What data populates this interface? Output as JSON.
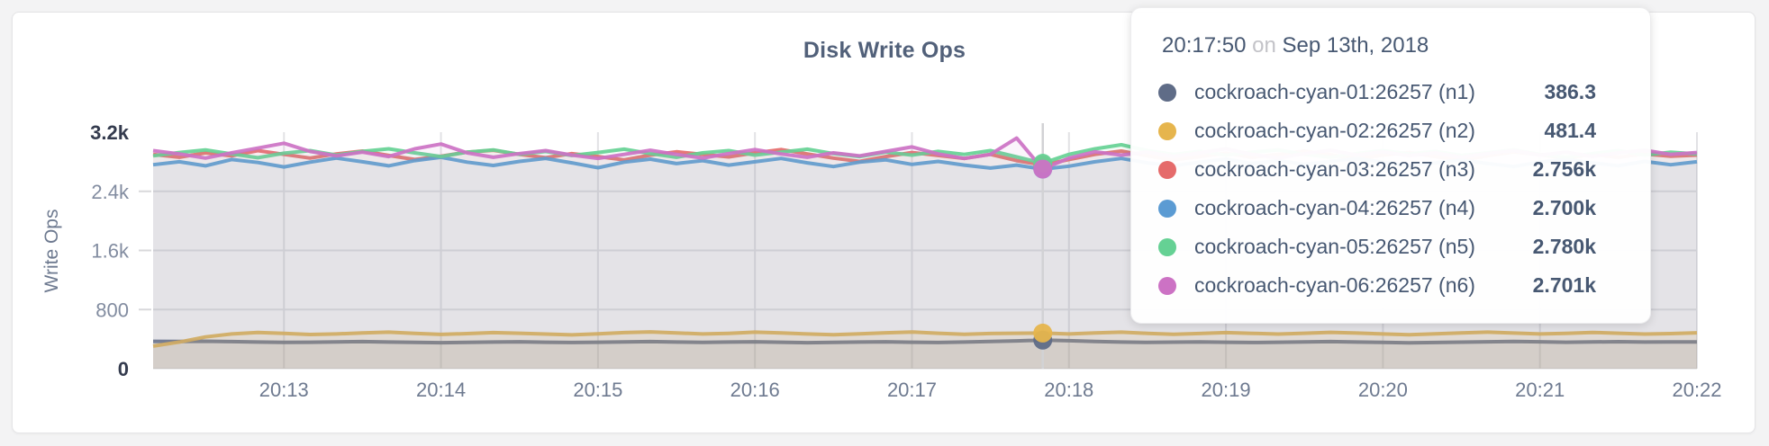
{
  "theme": {
    "page_background": "#f3f3f4",
    "card_background": "#ffffff",
    "grid_color": "#e2e2e5",
    "hover_line_color": "#d2d2d5",
    "axis_tick_color": "#828ca0",
    "axis_tick_strong_color": "#343b4e",
    "axis_label_color": "#6e7a90",
    "title_color": "#52617a",
    "tooltip_text_color": "#475872"
  },
  "chart": {
    "title": "Disk Write Ops",
    "ylabel": "Write Ops"
  },
  "tooltip": {
    "time": "20:17:50",
    "separator": "on",
    "date": "Sep 13th, 2018",
    "series": [
      {
        "label": "cockroach-cyan-01:26257 (n1)",
        "value": "386.3",
        "color": "#5f6c87"
      },
      {
        "label": "cockroach-cyan-02:26257 (n2)",
        "value": "481.4",
        "color": "#e6b54d"
      },
      {
        "label": "cockroach-cyan-03:26257 (n3)",
        "value": "2.756k",
        "color": "#e56b6b"
      },
      {
        "label": "cockroach-cyan-04:26257 (n4)",
        "value": "2.700k",
        "color": "#5b9bd3"
      },
      {
        "label": "cockroach-cyan-05:26257 (n5)",
        "value": "2.780k",
        "color": "#65d194"
      },
      {
        "label": "cockroach-cyan-06:26257 (n6)",
        "value": "2.701k",
        "color": "#cc72c4"
      }
    ]
  },
  "chart_data": {
    "type": "line",
    "title": "Disk Write Ops",
    "xlabel": "",
    "ylabel": "Write Ops",
    "ylim": [
      0,
      3200
    ],
    "grid": true,
    "x_start_time": "20:12:10",
    "x_step_seconds": 10,
    "hover_index": 34,
    "hover_time": "20:17:50",
    "hover_date": "Sep 13th, 2018",
    "y_ticks": [
      {
        "value": 0,
        "label": "0",
        "strong": true,
        "gridline": false
      },
      {
        "value": 800,
        "label": "800",
        "strong": false,
        "gridline": true
      },
      {
        "value": 1600,
        "label": "1.6k",
        "strong": false,
        "gridline": true
      },
      {
        "value": 2400,
        "label": "2.4k",
        "strong": false,
        "gridline": true
      },
      {
        "value": 3200,
        "label": "3.2k",
        "strong": true,
        "gridline": false
      }
    ],
    "x_ticks": [
      {
        "label": "20:13",
        "index": 5
      },
      {
        "label": "20:14",
        "index": 11
      },
      {
        "label": "20:15",
        "index": 17
      },
      {
        "label": "20:16",
        "index": 23
      },
      {
        "label": "20:17",
        "index": 29
      },
      {
        "label": "20:18",
        "index": 35
      },
      {
        "label": "20:19",
        "index": 41
      },
      {
        "label": "20:20",
        "index": 47
      },
      {
        "label": "20:21",
        "index": 53
      },
      {
        "label": "20:22",
        "index": 59
      }
    ],
    "series": [
      {
        "name": "cockroach-cyan-01:26257 (n1)",
        "color": "#5f6c87",
        "fill_alpha": 0.12,
        "hover_value": 386.3,
        "values": [
          370,
          368,
          371,
          366,
          360,
          356,
          358,
          362,
          366,
          360,
          355,
          352,
          356,
          360,
          364,
          358,
          354,
          358,
          362,
          366,
          360,
          356,
          360,
          364,
          358,
          352,
          356,
          360,
          364,
          358,
          354,
          360,
          368,
          376,
          386.3,
          378,
          368,
          360,
          355,
          359,
          363,
          358,
          354,
          358,
          362,
          366,
          360,
          355,
          350,
          354,
          359,
          364,
          369,
          364,
          358,
          361,
          365,
          360,
          363,
          361
        ]
      },
      {
        "name": "cockroach-cyan-02:26257 (n2)",
        "color": "#e6b54d",
        "fill_alpha": 0.15,
        "hover_value": 481.4,
        "values": [
          305,
          360,
          430,
          470,
          490,
          478,
          462,
          470,
          484,
          494,
          478,
          464,
          474,
          488,
          480,
          468,
          458,
          472,
          488,
          498,
          484,
          470,
          478,
          494,
          484,
          470,
          460,
          472,
          486,
          496,
          480,
          466,
          476,
          480,
          481.4,
          470,
          484,
          494,
          478,
          466,
          476,
          488,
          478,
          468,
          480,
          492,
          482,
          470,
          460,
          472,
          484,
          494,
          482,
          470,
          478,
          490,
          480,
          468,
          474,
          486
        ]
      },
      {
        "name": "cockroach-cyan-03:26257 (n3)",
        "color": "#e56b6b",
        "fill_alpha": 0.07,
        "hover_value": 2756,
        "values": [
          2900,
          2860,
          2920,
          2880,
          2950,
          2900,
          2850,
          2905,
          2945,
          2885,
          2830,
          2875,
          2930,
          2955,
          2900,
          2855,
          2910,
          2870,
          2825,
          2890,
          2935,
          2900,
          2865,
          2920,
          2965,
          2905,
          2850,
          2805,
          2870,
          2925,
          2885,
          2845,
          2900,
          2815,
          2756,
          2830,
          2900,
          2945,
          2880,
          2825,
          2870,
          2915,
          2860,
          2900,
          2945,
          2895,
          2840,
          2890,
          2925,
          2870,
          2820,
          2880,
          2935,
          2895,
          2850,
          2900,
          2860,
          2905,
          2875,
          2890
        ]
      },
      {
        "name": "cockroach-cyan-04:26257 (n4)",
        "color": "#5b9bd3",
        "fill_alpha": 0.07,
        "hover_value": 2700,
        "values": [
          2760,
          2800,
          2745,
          2830,
          2790,
          2730,
          2795,
          2850,
          2800,
          2745,
          2815,
          2860,
          2795,
          2750,
          2805,
          2845,
          2785,
          2720,
          2795,
          2835,
          2775,
          2815,
          2755,
          2800,
          2845,
          2785,
          2735,
          2795,
          2825,
          2765,
          2805,
          2755,
          2715,
          2755,
          2700,
          2740,
          2800,
          2845,
          2785,
          2745,
          2795,
          2835,
          2775,
          2815,
          2765,
          2805,
          2845,
          2795,
          2745,
          2785,
          2825,
          2775,
          2735,
          2795,
          2835,
          2785,
          2745,
          2805,
          2760,
          2800
        ]
      },
      {
        "name": "cockroach-cyan-05:26257 (n5)",
        "color": "#65d194",
        "fill_alpha": 0.07,
        "hover_value": 2780,
        "values": [
          2880,
          2925,
          2960,
          2905,
          2855,
          2915,
          2950,
          2890,
          2940,
          2975,
          2920,
          2870,
          2930,
          2960,
          2900,
          2940,
          2885,
          2925,
          2970,
          2910,
          2860,
          2920,
          2950,
          2890,
          2930,
          2970,
          2910,
          2870,
          2930,
          2890,
          2940,
          2900,
          2950,
          2865,
          2780,
          2900,
          2975,
          3030,
          2950,
          2900,
          2940,
          2890,
          2930,
          2960,
          2900,
          2860,
          2910,
          2950,
          2905,
          2940,
          2885,
          2920,
          2960,
          2900,
          2860,
          2910,
          2950,
          2890,
          2930,
          2905
        ]
      },
      {
        "name": "cockroach-cyan-06:26257 (n6)",
        "color": "#cc72c4",
        "fill_alpha": 0.07,
        "hover_value": 2701,
        "values": [
          2950,
          2905,
          2850,
          2920,
          2985,
          3050,
          2940,
          2880,
          2930,
          2870,
          2975,
          3040,
          2920,
          2860,
          2910,
          2950,
          2890,
          2845,
          2900,
          2955,
          2900,
          2850,
          2910,
          2965,
          2905,
          2860,
          2920,
          2880,
          2940,
          3000,
          2905,
          2845,
          2900,
          3120,
          2701,
          2850,
          2935,
          2890,
          2930,
          2870,
          2920,
          2975,
          2900,
          2850,
          2910,
          2955,
          2890,
          2935,
          2880,
          2920,
          2860,
          2910,
          2950,
          2890,
          2930,
          2870,
          2920,
          2955,
          2900,
          2925
        ]
      }
    ]
  }
}
